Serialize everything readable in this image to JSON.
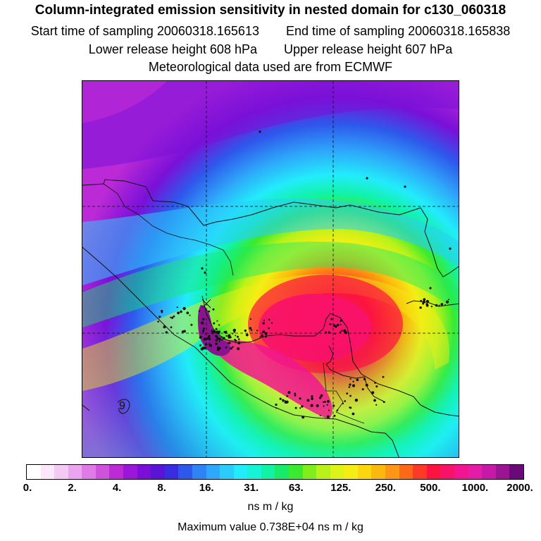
{
  "header": {
    "title": "Column-integrated emission sensitivity in nested domain for c130_060318",
    "start_label": "Start time of sampling",
    "start_value": "20060318.165613",
    "end_label": "End time of sampling",
    "end_value": "20060318.165838",
    "lower_label": "Lower release height",
    "lower_value": "608 hPa",
    "upper_label": "Upper release height",
    "upper_value": "607 hPa",
    "met_source": "Meteorological data used are from ECMWF"
  },
  "map": {
    "region": "Gulf of Mexico, Central America and Caribbean",
    "contour_label": "9",
    "receptor_marker": "X"
  },
  "legend": {
    "colors": [
      "#ffffff",
      "#fbe8fb",
      "#f4c9f4",
      "#eca4ee",
      "#df7be6",
      "#cf52dd",
      "#bb2ad6",
      "#9b16d8",
      "#7a10d8",
      "#5a14d8",
      "#3a2ce0",
      "#2e58ec",
      "#2d85f5",
      "#2ea8fa",
      "#2bccfb",
      "#22ecfb",
      "#16f4d6",
      "#12f2a6",
      "#16ec6a",
      "#3aea2e",
      "#80ee1c",
      "#b8f21a",
      "#dcf418",
      "#f4ee14",
      "#fcd60e",
      "#fcb80c",
      "#fc9614",
      "#fc6a18",
      "#fc3a26",
      "#fc1440",
      "#f8126a",
      "#f21490",
      "#e41ca8",
      "#c818a8",
      "#9a1494",
      "#6a0a78"
    ],
    "tick_labels": [
      "0.",
      "2.",
      "4.",
      "8.",
      "16.",
      "31.",
      "63.",
      "125.",
      "250.",
      "500.",
      "1000.",
      "2000."
    ],
    "unit": "ns m / kg",
    "max_label": "Maximum value",
    "max_value": "0.738E+04 ns m / kg"
  }
}
